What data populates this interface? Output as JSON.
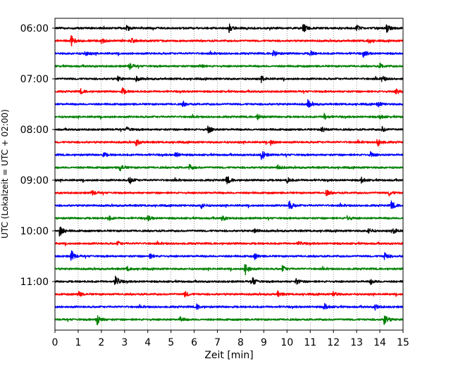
{
  "chart_data": {
    "type": "line",
    "xlabel": "Zeit  [min]",
    "ylabel": "UTC (Lokalzeit = UTC + 02:00)",
    "xlim": [
      0,
      15
    ],
    "x_ticks": [
      "0",
      "1",
      "2",
      "3",
      "4",
      "5",
      "6",
      "7",
      "8",
      "9",
      "10",
      "11",
      "12",
      "13",
      "14",
      "15"
    ],
    "y_ticks": [
      "06:00",
      "07:00",
      "08:00",
      "09:00",
      "10:00",
      "11:00"
    ],
    "grid": "vertical dotted",
    "trace_interval_min": 15,
    "trace_colors": [
      "#000000",
      "#ff0000",
      "#0000ff",
      "#008000"
    ],
    "traces": [
      {
        "start": "06:00",
        "events": [
          [
            3.1,
            0.45
          ],
          [
            7.5,
            0.6
          ],
          [
            10.7,
            0.75
          ],
          [
            13.0,
            0.45
          ],
          [
            14.3,
            0.65
          ]
        ]
      },
      {
        "start": "06:15",
        "events": [
          [
            0.7,
            0.9
          ],
          [
            2.0,
            0.45
          ],
          [
            3.3,
            0.35
          ],
          [
            13.5,
            0.35
          ]
        ]
      },
      {
        "start": "06:30",
        "events": [
          [
            1.3,
            0.4
          ],
          [
            9.4,
            0.6
          ],
          [
            11.0,
            0.4
          ],
          [
            13.3,
            0.5
          ]
        ]
      },
      {
        "start": "06:45",
        "events": [
          [
            3.2,
            0.55
          ],
          [
            6.2,
            0.4
          ],
          [
            14.0,
            0.4
          ]
        ]
      },
      {
        "start": "07:00",
        "events": [
          [
            2.7,
            0.4
          ],
          [
            3.5,
            0.35
          ],
          [
            8.9,
            0.4
          ],
          [
            14.1,
            0.45
          ]
        ]
      },
      {
        "start": "07:15",
        "events": [
          [
            1.1,
            0.35
          ],
          [
            2.9,
            0.55
          ],
          [
            14.7,
            0.5
          ]
        ]
      },
      {
        "start": "07:30",
        "events": [
          [
            5.5,
            0.4
          ],
          [
            10.9,
            0.7
          ],
          [
            13.9,
            0.4
          ]
        ]
      },
      {
        "start": "07:45",
        "events": [
          [
            8.7,
            0.5
          ],
          [
            11.6,
            0.45
          ],
          [
            14.0,
            0.35
          ]
        ]
      },
      {
        "start": "08:00",
        "events": [
          [
            3.1,
            0.4
          ],
          [
            6.6,
            0.65
          ],
          [
            11.5,
            0.5
          ],
          [
            14.1,
            0.4
          ]
        ]
      },
      {
        "start": "08:15",
        "events": [
          [
            3.5,
            0.55
          ],
          [
            9.3,
            0.4
          ],
          [
            13.9,
            0.7
          ]
        ]
      },
      {
        "start": "08:30",
        "events": [
          [
            2.1,
            0.35
          ],
          [
            5.2,
            0.45
          ],
          [
            8.9,
            0.85
          ],
          [
            13.6,
            0.45
          ]
        ]
      },
      {
        "start": "08:45",
        "events": [
          [
            2.8,
            0.6
          ],
          [
            5.8,
            0.45
          ],
          [
            9.6,
            0.4
          ]
        ]
      },
      {
        "start": "09:00",
        "events": [
          [
            3.2,
            0.65
          ],
          [
            7.4,
            0.75
          ],
          [
            10.0,
            0.45
          ],
          [
            13.2,
            0.45
          ]
        ]
      },
      {
        "start": "09:15",
        "events": [
          [
            1.6,
            0.4
          ],
          [
            11.7,
            0.45
          ],
          [
            14.4,
            0.4
          ]
        ]
      },
      {
        "start": "09:30",
        "events": [
          [
            6.3,
            0.45
          ],
          [
            10.1,
            0.8
          ],
          [
            14.5,
            0.7
          ]
        ]
      },
      {
        "start": "09:45",
        "events": [
          [
            2.3,
            0.35
          ],
          [
            4.0,
            0.4
          ],
          [
            7.2,
            0.4
          ],
          [
            12.6,
            0.4
          ]
        ]
      },
      {
        "start": "10:00",
        "events": [
          [
            0.2,
            0.9
          ],
          [
            8.6,
            0.4
          ],
          [
            13.5,
            0.45
          ],
          [
            14.6,
            0.5
          ]
        ]
      },
      {
        "start": "10:15",
        "events": [
          [
            2.7,
            0.3
          ],
          [
            10.5,
            0.3
          ]
        ]
      },
      {
        "start": "10:30",
        "events": [
          [
            0.7,
            0.9
          ],
          [
            4.1,
            0.35
          ],
          [
            8.6,
            0.45
          ],
          [
            14.2,
            0.65
          ]
        ]
      },
      {
        "start": "10:45",
        "events": [
          [
            3.1,
            0.35
          ],
          [
            8.2,
            1.0
          ],
          [
            9.8,
            0.5
          ]
        ]
      },
      {
        "start": "11:00",
        "events": [
          [
            2.6,
            1.0
          ],
          [
            8.5,
            0.75
          ],
          [
            10.4,
            0.45
          ],
          [
            13.6,
            0.4
          ]
        ]
      },
      {
        "start": "11:15",
        "events": [
          [
            1.0,
            0.45
          ],
          [
            5.6,
            0.45
          ],
          [
            9.6,
            0.4
          ],
          [
            12.0,
            0.4
          ]
        ]
      },
      {
        "start": "11:30",
        "events": [
          [
            6.1,
            0.4
          ],
          [
            11.6,
            0.55
          ],
          [
            13.8,
            0.4
          ]
        ]
      },
      {
        "start": "11:45",
        "events": [
          [
            1.8,
            1.0
          ],
          [
            5.4,
            0.4
          ],
          [
            14.2,
            1.0
          ]
        ]
      }
    ]
  }
}
